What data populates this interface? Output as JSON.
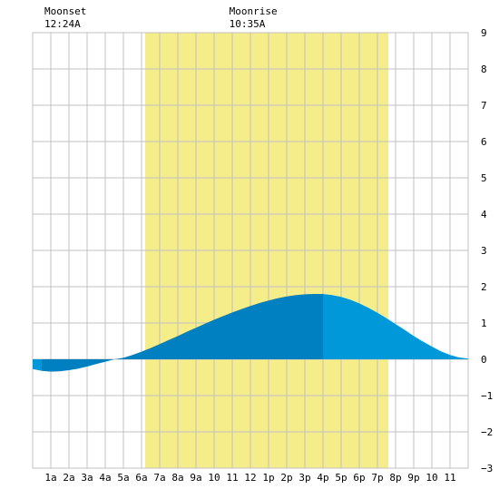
{
  "chart_data": {
    "type": "area",
    "title": "",
    "xlabel": "",
    "ylabel": "",
    "x_tick_labels": [
      "1a",
      "2a",
      "3a",
      "4a",
      "5a",
      "6a",
      "7a",
      "8a",
      "9a",
      "10",
      "11",
      "12",
      "1p",
      "2p",
      "3p",
      "4p",
      "5p",
      "6p",
      "7p",
      "8p",
      "9p",
      "10",
      "11"
    ],
    "xlim_hours": [
      0,
      24
    ],
    "ylim": [
      -3,
      9
    ],
    "y_ticks": [
      -3,
      -2,
      -1,
      0,
      1,
      2,
      3,
      4,
      5,
      6,
      7,
      8,
      9
    ],
    "grid": true,
    "daylight_band_hours": [
      6.2,
      19.6
    ],
    "annotations": [
      {
        "title": "Moonset",
        "time": "12:24A",
        "hour": 0.4
      },
      {
        "title": "Moonrise",
        "time": "10:35A",
        "hour": 10.58
      }
    ],
    "tide_series": {
      "x_hours": [
        0,
        0.5,
        1,
        1.5,
        2,
        2.5,
        3,
        3.5,
        4,
        4.5,
        5,
        5.5,
        6,
        6.5,
        7,
        7.5,
        8,
        8.5,
        9,
        9.5,
        10,
        10.5,
        11,
        11.5,
        12,
        12.5,
        13,
        13.5,
        14,
        14.5,
        15,
        15.5,
        16,
        16.5,
        17,
        17.5,
        18,
        18.5,
        19,
        19.5,
        20,
        20.5,
        21,
        21.5,
        22,
        22.5,
        23,
        23.5,
        24
      ],
      "y_values": [
        -0.27,
        -0.32,
        -0.34,
        -0.33,
        -0.3,
        -0.26,
        -0.2,
        -0.13,
        -0.07,
        0.0,
        0.04,
        0.12,
        0.21,
        0.31,
        0.42,
        0.53,
        0.64,
        0.76,
        0.87,
        0.98,
        1.09,
        1.19,
        1.29,
        1.38,
        1.47,
        1.55,
        1.62,
        1.68,
        1.73,
        1.77,
        1.79,
        1.8,
        1.8,
        1.77,
        1.72,
        1.64,
        1.54,
        1.42,
        1.28,
        1.13,
        0.97,
        0.81,
        0.64,
        0.49,
        0.35,
        0.22,
        0.12,
        0.05,
        0.02
      ]
    },
    "shade_split_hour": 16,
    "colors": {
      "background": "#ffffff",
      "grid": "#c0c0c0",
      "daylight": "#f5ec8a",
      "tide_dark": "#0080c0",
      "tide_light": "#0098d8",
      "text": "#000000"
    }
  }
}
